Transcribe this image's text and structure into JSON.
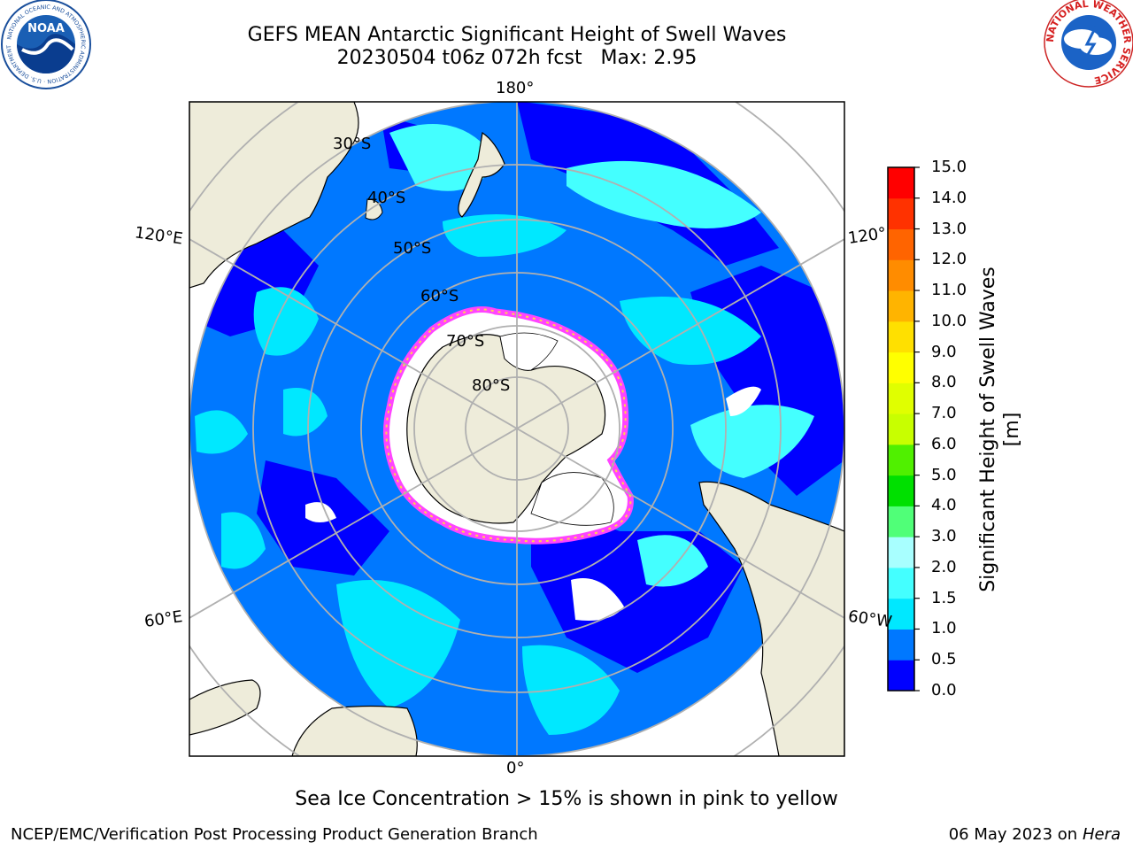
{
  "header": {
    "title_line1": "GEFS MEAN Antarctic Significant Height of Swell Waves",
    "title_line2": "20230504 t06z 072h fcst   Max: 2.95",
    "noaa_logo_text": "NOAA",
    "noaa_ring_text": "NATIONAL OCEANIC AND ATMOSPHERIC ADMINISTRATION · U.S. DEPARTMENT OF COMMERCE",
    "nws_ring_text": "NATIONAL WEATHER SERVICE"
  },
  "map": {
    "projection": "south polar stereographic",
    "longitude_labels": {
      "top": "180°",
      "bottom": "0°",
      "upper_left": "120°E",
      "upper_right": "120°",
      "lower_left": "60°E",
      "lower_right": "60°W"
    },
    "latitude_labels": [
      "30°S",
      "40°S",
      "50°S",
      "60°S",
      "70°S",
      "80°S"
    ],
    "colors": {
      "land": "#eeecda",
      "ice_edge": "#ff44ff",
      "open_water_low": "#0000ff",
      "gridline": "#b0b0b0"
    }
  },
  "colorbar": {
    "label": "Significant Height of Swell Waves [m]",
    "ticks": [
      "0.0",
      "0.5",
      "1.0",
      "1.5",
      "2.0",
      "3.0",
      "4.0",
      "5.0",
      "6.0",
      "7.0",
      "8.0",
      "9.0",
      "10.0",
      "11.0",
      "12.0",
      "13.0",
      "14.0",
      "15.0"
    ],
    "colors": [
      "#0000ff",
      "#0078ff",
      "#00e8ff",
      "#44ffff",
      "#a8ffff",
      "#50ff78",
      "#00e000",
      "#50f000",
      "#c8ff00",
      "#e0ff00",
      "#ffff00",
      "#ffe000",
      "#ffb400",
      "#ff8c00",
      "#ff6400",
      "#ff3200",
      "#ff0000"
    ]
  },
  "footer": {
    "note": "Sea Ice Concentration > 15% is shown in pink to yellow",
    "credit": "NCEP/EMC/Verification Post Processing Product Generation Branch",
    "date": "06 May 2023 on",
    "machine": "Hera"
  }
}
